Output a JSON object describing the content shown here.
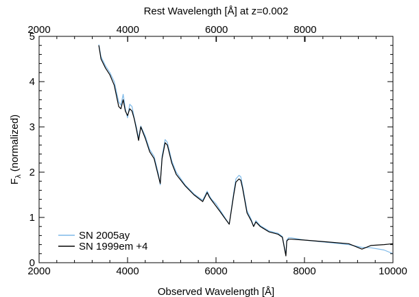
{
  "chart_data": {
    "type": "line",
    "xlabel": "Observed Wavelength [Å]",
    "ylabel_main": "F",
    "ylabel_sub": "λ",
    "ylabel_rest": " (normalized)",
    "top_xlabel": "Rest Wavelength [Å] at z=0.002",
    "xlim": [
      2000,
      10000
    ],
    "ylim": [
      0,
      5
    ],
    "top_xlim": [
      2000,
      9980
    ],
    "x_ticks": [
      2000,
      4000,
      6000,
      8000,
      10000
    ],
    "y_ticks": [
      0,
      1,
      2,
      3,
      4,
      5
    ],
    "top_x_ticks": [
      2000,
      4000,
      6000,
      8000
    ],
    "legend": {
      "placement": "bottom-left"
    },
    "series": [
      {
        "name": "SN 2005ay",
        "color": "#7db9e8",
        "x": [
          3350,
          3400,
          3500,
          3600,
          3700,
          3800,
          3850,
          3900,
          3950,
          4000,
          4050,
          4100,
          4150,
          4200,
          4250,
          4300,
          4400,
          4500,
          4600,
          4700,
          4740,
          4780,
          4850,
          4900,
          5000,
          5100,
          5300,
          5500,
          5700,
          5800,
          5850,
          5900,
          6000,
          6100,
          6200,
          6300,
          6400,
          6450,
          6520,
          6560,
          6600,
          6700,
          6800,
          6850,
          6900,
          7000,
          7200,
          7400,
          7500,
          7580,
          7600,
          7640,
          7700,
          8000,
          8500,
          9000,
          9300,
          9500,
          9800,
          10000
        ],
        "y": [
          4.82,
          4.55,
          4.35,
          4.2,
          4.0,
          3.55,
          3.48,
          3.72,
          3.4,
          3.2,
          3.5,
          3.45,
          3.2,
          3.0,
          2.75,
          3.02,
          2.8,
          2.5,
          2.35,
          1.95,
          1.72,
          2.35,
          2.72,
          2.66,
          2.25,
          2.0,
          1.72,
          1.52,
          1.38,
          1.58,
          1.48,
          1.4,
          1.3,
          1.15,
          1.0,
          0.85,
          1.55,
          1.85,
          1.93,
          1.9,
          1.7,
          1.15,
          0.95,
          0.8,
          0.93,
          0.82,
          0.7,
          0.65,
          0.58,
          0.18,
          0.5,
          0.55,
          0.55,
          0.5,
          0.45,
          0.4,
          0.34,
          0.33,
          0.28,
          0.2
        ]
      },
      {
        "name": "SN 1999em +4",
        "color": "#000000",
        "x": [
          3350,
          3400,
          3500,
          3600,
          3700,
          3800,
          3850,
          3900,
          3950,
          4000,
          4050,
          4100,
          4150,
          4200,
          4250,
          4300,
          4400,
          4500,
          4600,
          4700,
          4740,
          4780,
          4850,
          4900,
          5000,
          5100,
          5300,
          5500,
          5700,
          5800,
          5850,
          5900,
          6000,
          6100,
          6200,
          6300,
          6400,
          6450,
          6520,
          6560,
          6600,
          6700,
          6800,
          6850,
          6900,
          7000,
          7200,
          7400,
          7500,
          7580,
          7600,
          7640,
          7700,
          8000,
          8500,
          9000,
          9300,
          9500,
          9800,
          10000
        ],
        "y": [
          4.8,
          4.5,
          4.3,
          4.15,
          3.92,
          3.45,
          3.4,
          3.6,
          3.35,
          3.25,
          3.4,
          3.35,
          3.18,
          2.95,
          2.7,
          3.0,
          2.75,
          2.45,
          2.3,
          1.9,
          1.75,
          2.3,
          2.65,
          2.6,
          2.2,
          1.95,
          1.7,
          1.5,
          1.35,
          1.55,
          1.45,
          1.38,
          1.25,
          1.12,
          0.98,
          0.85,
          1.5,
          1.78,
          1.85,
          1.82,
          1.65,
          1.1,
          0.92,
          0.8,
          0.9,
          0.8,
          0.68,
          0.63,
          0.56,
          0.15,
          0.48,
          0.52,
          0.52,
          0.5,
          0.46,
          0.42,
          0.3,
          0.38,
          0.4,
          0.42
        ]
      }
    ]
  }
}
